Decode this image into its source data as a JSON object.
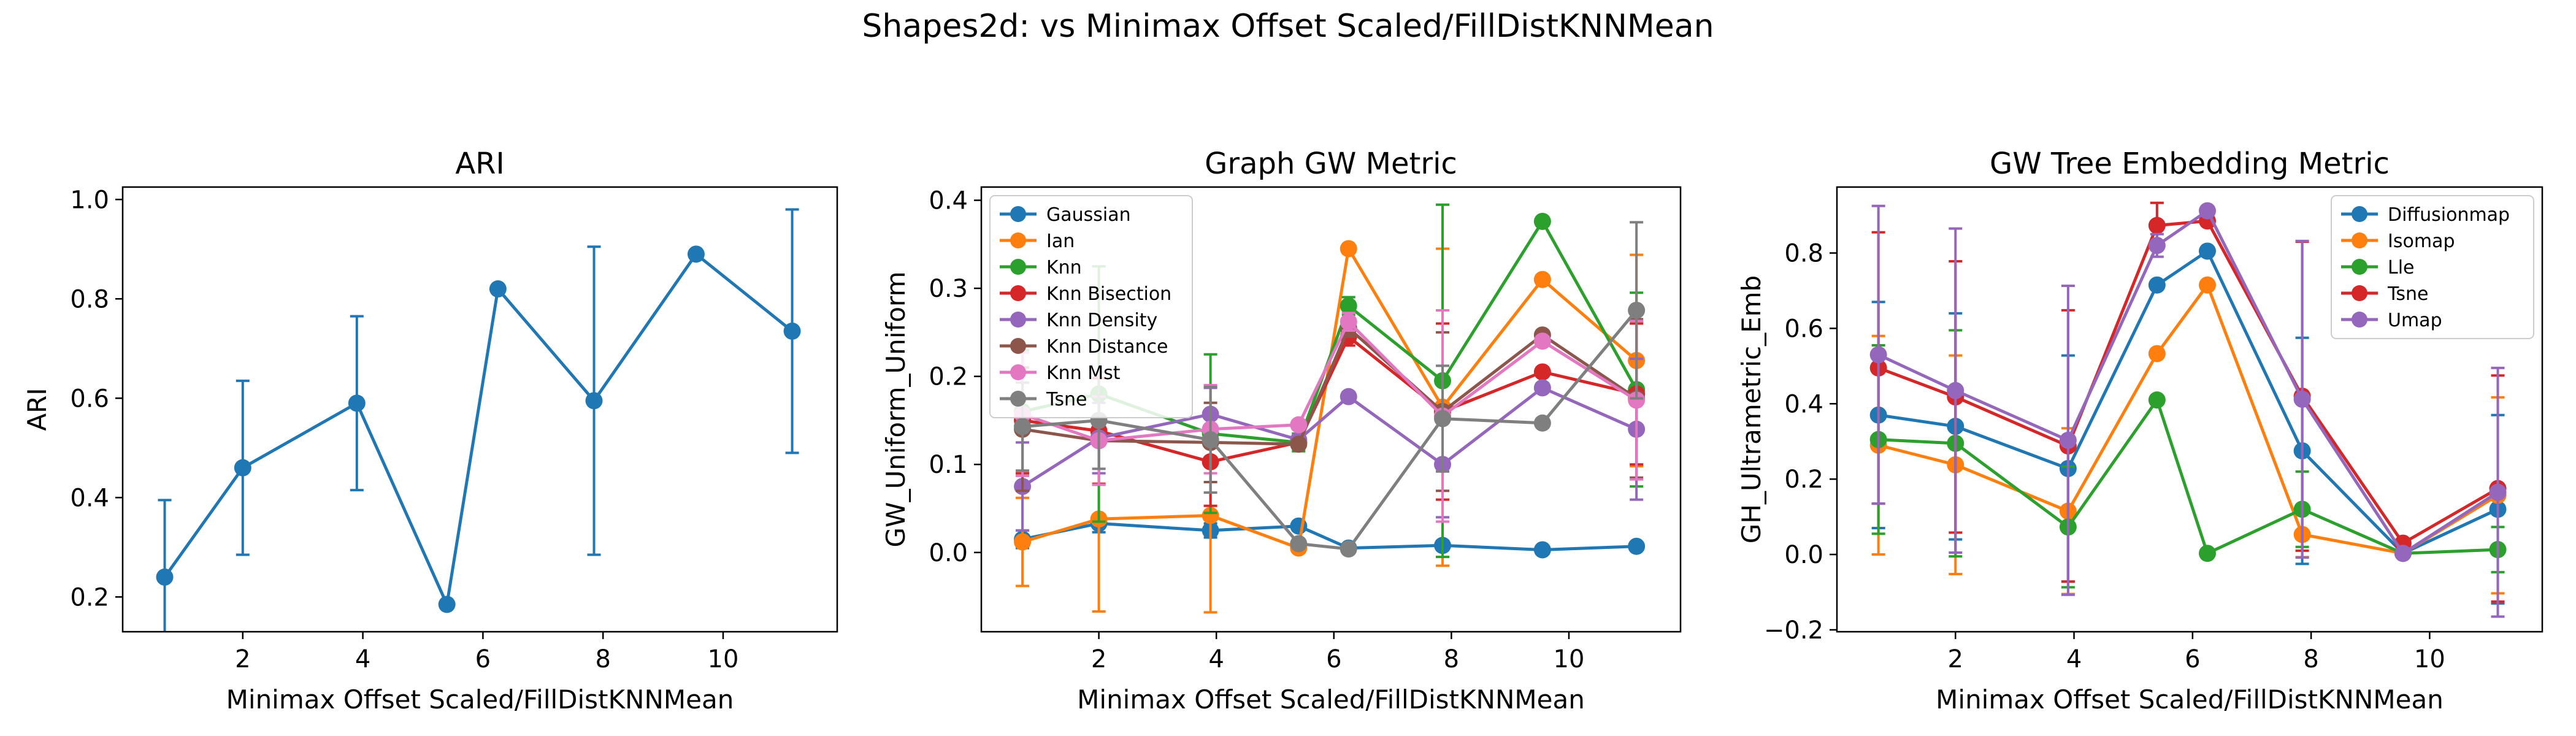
{
  "figure": {
    "suptitle": "Shapes2d: vs Minimax Offset Scaled/FillDistKNNMean"
  },
  "chart_data": [
    {
      "type": "line",
      "title": "ARI",
      "xlabel": "Minimax Offset Scaled/FillDistKNNMean",
      "ylabel": "ARI",
      "xlim": [
        0.0,
        11.9
      ],
      "ylim": [
        0.13,
        1.025
      ],
      "xticks": [
        2,
        4,
        6,
        8,
        10
      ],
      "yticks": [
        0.2,
        0.4,
        0.6,
        0.8,
        1.0
      ],
      "x": [
        0.7,
        2.0,
        3.9,
        5.4,
        6.25,
        7.85,
        9.55,
        11.15
      ],
      "legend": null,
      "series": [
        {
          "name": "",
          "color": "#1f77b4",
          "values": [
            0.24,
            0.46,
            0.59,
            0.185,
            0.82,
            0.595,
            0.89,
            0.735
          ],
          "err": [
            0.155,
            0.175,
            0.175,
            0.0,
            0.0,
            0.31,
            0.0,
            0.245
          ]
        }
      ]
    },
    {
      "type": "line",
      "title": "Graph GW Metric",
      "xlabel": "Minimax Offset Scaled/FillDistKNNMean",
      "ylabel": "GW_Uniform_Uniform",
      "xlim": [
        0.0,
        11.9
      ],
      "ylim": [
        -0.09,
        0.415
      ],
      "xticks": [
        2,
        4,
        6,
        8,
        10
      ],
      "yticks": [
        0.0,
        0.1,
        0.2,
        0.3,
        0.4
      ],
      "x": [
        0.7,
        2.0,
        3.9,
        5.4,
        6.25,
        7.85,
        9.55,
        11.15
      ],
      "legend": "upper-left",
      "series": [
        {
          "name": "Gaussian",
          "color": "#1f77b4",
          "values": [
            0.015,
            0.033,
            0.025,
            0.03,
            0.005,
            0.008,
            0.003,
            0.007
          ],
          "err": [
            0.01,
            0.01,
            0.008,
            0.005,
            0.002,
            0.005,
            0.002,
            0.003
          ]
        },
        {
          "name": "Ian",
          "color": "#ff7f0e",
          "values": [
            0.012,
            0.038,
            0.042,
            0.005,
            0.345,
            0.165,
            0.31,
            0.218
          ],
          "err": [
            0.05,
            0.105,
            0.11,
            0.005,
            0.005,
            0.18,
            0.005,
            0.12
          ]
        },
        {
          "name": "Knn",
          "color": "#2ca02c",
          "values": [
            0.16,
            0.18,
            0.135,
            0.125,
            0.28,
            0.195,
            0.376,
            0.185
          ],
          "err": [
            0.07,
            0.145,
            0.09,
            0.01,
            0.01,
            0.2,
            0.005,
            0.11
          ]
        },
        {
          "name": "Knn Bisection",
          "color": "#d62728",
          "values": [
            0.15,
            0.138,
            0.103,
            0.125,
            0.245,
            0.16,
            0.205,
            0.18
          ],
          "err": [
            0.06,
            0.06,
            0.05,
            0.005,
            0.01,
            0.1,
            0.005,
            0.08
          ]
        },
        {
          "name": "Knn Density",
          "color": "#9467bd",
          "values": [
            0.075,
            0.13,
            0.157,
            0.128,
            0.177,
            0.1,
            0.187,
            0.14
          ],
          "err": [
            0.05,
            0.04,
            0.03,
            0.005,
            0.005,
            0.06,
            0.005,
            0.08
          ]
        },
        {
          "name": "Knn Distance",
          "color": "#8c564b",
          "values": [
            0.14,
            0.127,
            0.125,
            0.123,
            0.255,
            0.16,
            0.247,
            0.175
          ],
          "err": [
            0.07,
            0.05,
            0.045,
            0.005,
            0.01,
            0.09,
            0.005,
            0.09
          ]
        },
        {
          "name": "Knn Mst",
          "color": "#e377c2",
          "values": [
            0.157,
            0.127,
            0.14,
            0.145,
            0.262,
            0.155,
            0.24,
            0.173
          ],
          "err": [
            0.07,
            0.05,
            0.05,
            0.005,
            0.01,
            0.12,
            0.005,
            0.09
          ]
        },
        {
          "name": "Tsne",
          "color": "#7f7f7f",
          "values": [
            0.143,
            0.15,
            0.128,
            0.01,
            0.004,
            0.152,
            0.147,
            0.275
          ],
          "err": [
            0.05,
            0.055,
            0.06,
            0.005,
            0.003,
            0.06,
            0.005,
            0.1
          ]
        }
      ]
    },
    {
      "type": "line",
      "title": "GW Tree Embedding Metric",
      "xlabel": "Minimax Offset Scaled/FillDistKNNMean",
      "ylabel": "GH_Ultrametric_Emb",
      "xlim": [
        0.0,
        11.9
      ],
      "ylim": [
        -0.205,
        0.975
      ],
      "xticks": [
        2,
        4,
        6,
        8,
        10
      ],
      "yticks": [
        -0.2,
        0.0,
        0.2,
        0.4,
        0.6,
        0.8
      ],
      "x": [
        0.7,
        2.0,
        3.9,
        5.4,
        6.25,
        7.85,
        9.55,
        11.15
      ],
      "legend": "upper-right",
      "series": [
        {
          "name": "Diffusionmap",
          "color": "#1f77b4",
          "values": [
            0.37,
            0.34,
            0.228,
            0.715,
            0.805,
            0.275,
            0.003,
            0.12
          ],
          "err": [
            0.3,
            0.3,
            0.3,
            0.01,
            0.01,
            0.3,
            0.005,
            0.25
          ]
        },
        {
          "name": "Isomap",
          "color": "#ff7f0e",
          "values": [
            0.29,
            0.238,
            0.115,
            0.533,
            0.715,
            0.053,
            0.003,
            0.157
          ],
          "err": [
            0.29,
            0.29,
            0.22,
            0.01,
            0.01,
            0.06,
            0.005,
            0.26
          ]
        },
        {
          "name": "Lle",
          "color": "#2ca02c",
          "values": [
            0.305,
            0.295,
            0.073,
            0.41,
            0.003,
            0.12,
            0.003,
            0.013
          ],
          "err": [
            0.25,
            0.3,
            0.16,
            0.01,
            0.005,
            0.1,
            0.005,
            0.06
          ]
        },
        {
          "name": "Tsne",
          "color": "#d62728",
          "values": [
            0.495,
            0.418,
            0.288,
            0.873,
            0.885,
            0.42,
            0.03,
            0.175
          ],
          "err": [
            0.36,
            0.36,
            0.36,
            0.06,
            0.01,
            0.41,
            0.005,
            0.3
          ]
        },
        {
          "name": "Umap",
          "color": "#9467bd",
          "values": [
            0.53,
            0.435,
            0.303,
            0.82,
            0.912,
            0.412,
            0.003,
            0.165
          ],
          "err": [
            0.395,
            0.43,
            0.41,
            0.03,
            0.01,
            0.42,
            0.005,
            0.33
          ]
        }
      ]
    }
  ]
}
